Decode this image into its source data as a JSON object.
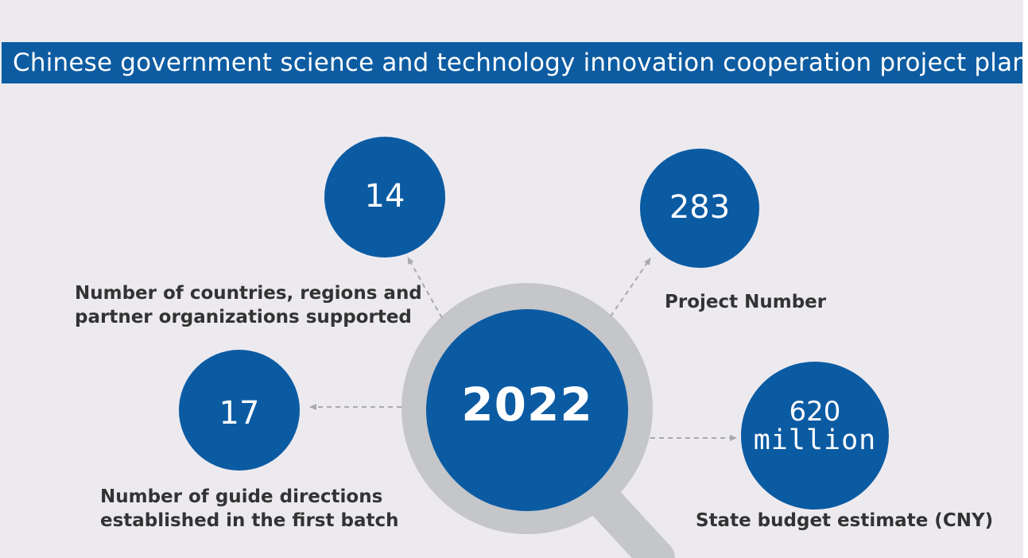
{
  "title": "Chinese government science and technology innovation cooperation project plan",
  "center": {
    "year": "2022"
  },
  "stats": {
    "countries": {
      "value": "14",
      "label_line1": "Number of countries, regions and",
      "label_line2": "partner organizations supported"
    },
    "projects": {
      "value": "283",
      "label": "Project Number"
    },
    "directions": {
      "value": "17",
      "label_line1": "Number of guide directions",
      "label_line2": "established in the first batch"
    },
    "budget": {
      "value": "620",
      "unit": "million",
      "label": "State budget estimate (CNY)"
    }
  },
  "colors": {
    "primary_blue": "#0b5ba3",
    "ring_gray": "#c4c6ca",
    "background": "#edeaef"
  }
}
